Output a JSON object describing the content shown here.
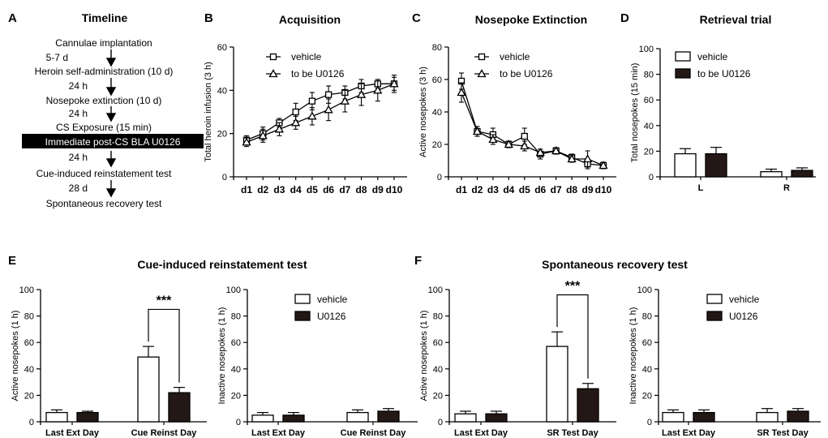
{
  "panel_letters": {
    "A": "A",
    "B": "B",
    "C": "C",
    "D": "D",
    "E": "E",
    "F": "F"
  },
  "timeline": {
    "title": "Timeline",
    "steps": [
      "Cannulae implantation",
      "Heroin self-administration (10 d)",
      "Nosepoke extinction (10 d)",
      "CS Exposure (15 min)",
      "Immediate post-CS BLA U0126",
      "Cue-induced reinstatement test",
      "Spontaneous recovery test"
    ],
    "intervals": [
      "5-7 d",
      "24 h",
      "24 h",
      "24 h",
      "28 d"
    ]
  },
  "group_titles": {
    "E": "Cue-induced reinstatement test",
    "F": "Spontaneous recovery test"
  },
  "colors": {
    "vehicle": "#ffffff",
    "u0126": "#231815",
    "axis": "#000000"
  },
  "chart_data": [
    {
      "id": "B",
      "type": "line",
      "title": "Acquisition",
      "xlabel": "",
      "ylabel": "Total heroin infusion (3 h)",
      "categories": [
        "d1",
        "d2",
        "d3",
        "d4",
        "d5",
        "d6",
        "d7",
        "d8",
        "d9",
        "d10"
      ],
      "ylim": [
        0,
        60
      ],
      "yticks": [
        0,
        20,
        40,
        60
      ],
      "series": [
        {
          "name": "vehicle",
          "marker": "square",
          "values": [
            17,
            20,
            25,
            30,
            35,
            38,
            39,
            42,
            43,
            43
          ],
          "errors": [
            2,
            3,
            2,
            4,
            4,
            4,
            3,
            3,
            2,
            3
          ]
        },
        {
          "name": "to be U0126",
          "marker": "triangle",
          "values": [
            16,
            19,
            22,
            25,
            28,
            31,
            35,
            38,
            40,
            43
          ],
          "errors": [
            2,
            3,
            3,
            3,
            4,
            5,
            5,
            5,
            5,
            4
          ]
        }
      ]
    },
    {
      "id": "C",
      "type": "line",
      "title": "Nosepoke Extinction",
      "xlabel": "",
      "ylabel": "Active nosepokes (3 h)",
      "categories": [
        "d1",
        "d2",
        "d3",
        "d4",
        "d5",
        "d6",
        "d7",
        "d8",
        "d9",
        "d10"
      ],
      "ylim": [
        0,
        80
      ],
      "yticks": [
        0,
        20,
        40,
        60,
        80
      ],
      "series": [
        {
          "name": "vehicle",
          "marker": "square",
          "values": [
            59,
            28,
            26,
            20,
            25,
            14,
            16,
            12,
            8,
            7
          ],
          "errors": [
            5,
            3,
            4,
            2,
            5,
            3,
            2,
            2,
            3,
            1
          ]
        },
        {
          "name": "to be U0126",
          "marker": "triangle",
          "values": [
            52,
            28,
            23,
            20,
            19,
            15,
            16,
            11,
            11,
            7
          ],
          "errors": [
            6,
            3,
            3,
            2,
            3,
            2,
            2,
            2,
            5,
            2
          ]
        }
      ]
    },
    {
      "id": "D",
      "type": "bar",
      "title": "Retrieval trial",
      "xlabel": "",
      "ylabel": "Total nosepokes (15 min)",
      "categories": [
        "L",
        "R"
      ],
      "ylim": [
        0,
        100
      ],
      "yticks": [
        0,
        20,
        40,
        60,
        80,
        100
      ],
      "series": [
        {
          "name": "vehicle",
          "values": [
            18,
            4
          ],
          "errors": [
            4,
            2
          ]
        },
        {
          "name": "to be U0126",
          "values": [
            18,
            5
          ],
          "errors": [
            5,
            2
          ]
        }
      ]
    },
    {
      "id": "E1",
      "type": "bar",
      "title": "",
      "xlabel": "",
      "ylabel": "Active nosepokes (1 h)",
      "categories": [
        "Last Ext Day",
        "Cue Reinst Day"
      ],
      "ylim": [
        0,
        100
      ],
      "yticks": [
        0,
        20,
        40,
        60,
        80,
        100
      ],
      "series": [
        {
          "name": "vehicle",
          "values": [
            7,
            49
          ],
          "errors": [
            2,
            8
          ]
        },
        {
          "name": "U0126",
          "values": [
            7,
            22
          ],
          "errors": [
            1,
            4
          ]
        }
      ],
      "significance": {
        "category_index": 1,
        "label": "***"
      }
    },
    {
      "id": "E2",
      "type": "bar",
      "title": "",
      "xlabel": "",
      "ylabel": "Inactive nosepokes (1 h)",
      "categories": [
        "Last Ext Day",
        "Cue Reinst Day"
      ],
      "ylim": [
        0,
        100
      ],
      "yticks": [
        0,
        20,
        40,
        60,
        80,
        100
      ],
      "series": [
        {
          "name": "vehicle",
          "values": [
            5,
            7
          ],
          "errors": [
            2,
            2
          ]
        },
        {
          "name": "U0126",
          "values": [
            5,
            8
          ],
          "errors": [
            2,
            2
          ]
        }
      ]
    },
    {
      "id": "F1",
      "type": "bar",
      "title": "",
      "xlabel": "",
      "ylabel": "Active nosepokes (1 h)",
      "categories": [
        "Last Ext Day",
        "SR Test Day"
      ],
      "ylim": [
        0,
        100
      ],
      "yticks": [
        0,
        20,
        40,
        60,
        80,
        100
      ],
      "series": [
        {
          "name": "vehicle",
          "values": [
            6,
            57
          ],
          "errors": [
            2,
            11
          ]
        },
        {
          "name": "U0126",
          "values": [
            6,
            25
          ],
          "errors": [
            2,
            4
          ]
        }
      ],
      "significance": {
        "category_index": 1,
        "label": "***"
      }
    },
    {
      "id": "F2",
      "type": "bar",
      "title": "",
      "xlabel": "",
      "ylabel": "Inactive nosepokes (1 h)",
      "categories": [
        "Last Ext Day",
        "SR Test Day"
      ],
      "ylim": [
        0,
        100
      ],
      "yticks": [
        0,
        20,
        40,
        60,
        80,
        100
      ],
      "series": [
        {
          "name": "vehicle",
          "values": [
            7,
            7
          ],
          "errors": [
            2,
            3
          ]
        },
        {
          "name": "U0126",
          "values": [
            7,
            8
          ],
          "errors": [
            2,
            2
          ]
        }
      ]
    }
  ]
}
